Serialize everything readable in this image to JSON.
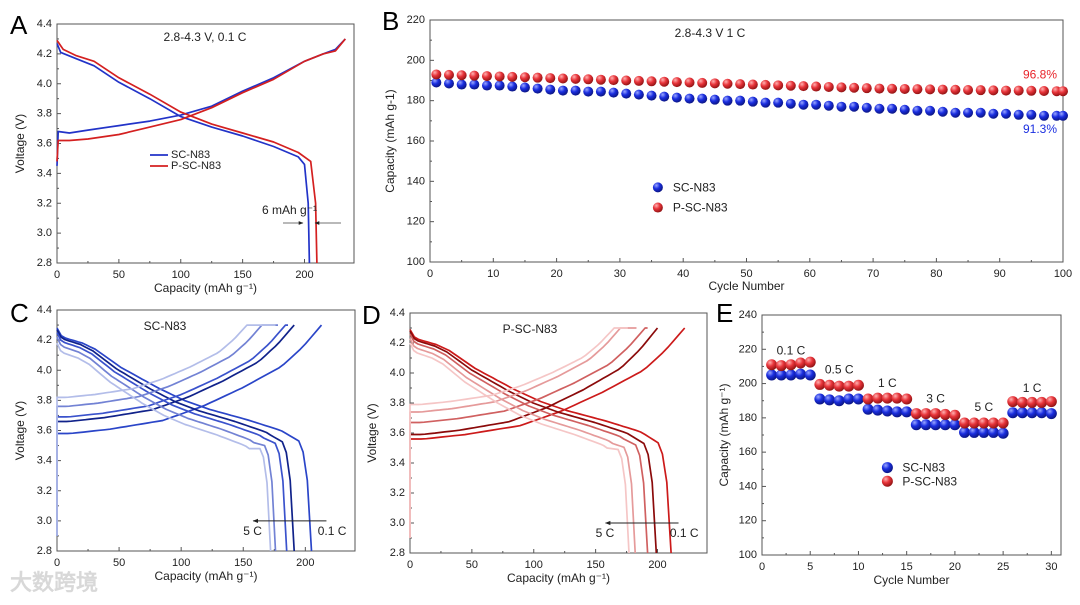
{
  "watermark": "大数跨境",
  "chart_data": [
    {
      "panel": "A",
      "type": "line",
      "title": "2.8-4.3 V, 0.1 C",
      "xlabel": "Capacity (mAh g⁻¹)",
      "ylabel": "Voltage (V)",
      "xlim": [
        0,
        240
      ],
      "ylim": [
        2.8,
        4.4
      ],
      "xticks": [
        "0",
        "50",
        "100",
        "150",
        "200"
      ],
      "yticks": [
        "2.8",
        "3.0",
        "3.2",
        "3.4",
        "3.6",
        "3.8",
        "4.0",
        "4.2",
        "4.4"
      ],
      "annotation": "6 mAh g⁻¹",
      "legend_position": "center-left",
      "series": [
        {
          "name": "SC-N83",
          "color": "#2233c8",
          "charge": [
            [
              0,
              3.45
            ],
            [
              1,
              3.68
            ],
            [
              10,
              3.67
            ],
            [
              25,
              3.69
            ],
            [
              50,
              3.72
            ],
            [
              75,
              3.75
            ],
            [
              100,
              3.79
            ],
            [
              125,
              3.85
            ],
            [
              150,
              3.95
            ],
            [
              175,
              4.04
            ],
            [
              200,
              4.15
            ],
            [
              215,
              4.2
            ],
            [
              225,
              4.23
            ],
            [
              233,
              4.3
            ]
          ],
          "discharge": [
            [
              0,
              4.27
            ],
            [
              3,
              4.21
            ],
            [
              15,
              4.17
            ],
            [
              30,
              4.12
            ],
            [
              50,
              4.01
            ],
            [
              75,
              3.9
            ],
            [
              100,
              3.78
            ],
            [
              125,
              3.71
            ],
            [
              150,
              3.65
            ],
            [
              175,
              3.58
            ],
            [
              195,
              3.51
            ],
            [
              200,
              3.46
            ],
            [
              203,
              3.2
            ],
            [
              204,
              2.8
            ]
          ]
        },
        {
          "name": "P-SC-N83",
          "color": "#d42020",
          "charge": [
            [
              0,
              3.48
            ],
            [
              1,
              3.62
            ],
            [
              10,
              3.62
            ],
            [
              25,
              3.63
            ],
            [
              50,
              3.66
            ],
            [
              75,
              3.71
            ],
            [
              100,
              3.76
            ],
            [
              125,
              3.84
            ],
            [
              150,
              3.94
            ],
            [
              175,
              4.03
            ],
            [
              200,
              4.15
            ],
            [
              215,
              4.2
            ],
            [
              225,
              4.22
            ],
            [
              233,
              4.3
            ]
          ],
          "discharge": [
            [
              0,
              4.29
            ],
            [
              5,
              4.23
            ],
            [
              15,
              4.19
            ],
            [
              30,
              4.15
            ],
            [
              50,
              4.04
            ],
            [
              75,
              3.93
            ],
            [
              100,
              3.81
            ],
            [
              125,
              3.73
            ],
            [
              150,
              3.67
            ],
            [
              175,
              3.61
            ],
            [
              195,
              3.54
            ],
            [
              205,
              3.48
            ],
            [
              209,
              3.2
            ],
            [
              210,
              2.8
            ]
          ]
        }
      ]
    },
    {
      "panel": "B",
      "type": "scatter",
      "title": "2.8-4.3 V 1 C",
      "xlabel": "Cycle Number",
      "ylabel": "Capacity (mAh g-1)",
      "xlim": [
        0,
        100
      ],
      "ylim": [
        100,
        220
      ],
      "xticks": [
        "0",
        "10",
        "20",
        "30",
        "40",
        "50",
        "60",
        "70",
        "80",
        "90",
        "100"
      ],
      "yticks": [
        "100",
        "120",
        "140",
        "160",
        "180",
        "200",
        "220"
      ],
      "legend_position": "center",
      "x": [
        1,
        3,
        5,
        7,
        9,
        11,
        13,
        15,
        17,
        19,
        21,
        23,
        25,
        27,
        29,
        31,
        33,
        35,
        37,
        39,
        41,
        43,
        45,
        47,
        49,
        51,
        53,
        55,
        57,
        59,
        61,
        63,
        65,
        67,
        69,
        71,
        73,
        75,
        77,
        79,
        81,
        83,
        85,
        87,
        89,
        91,
        93,
        95,
        97,
        99
      ],
      "series": [
        {
          "name": "SC-N83",
          "color": "#1a2ee0",
          "retention": "91.3%",
          "values": [
            189,
            188.5,
            188,
            188,
            187.5,
            187.5,
            187,
            186.5,
            186,
            185.5,
            185,
            185,
            184.5,
            184.5,
            184,
            183.5,
            183,
            182.5,
            182,
            181.5,
            181,
            181,
            180.5,
            180,
            180,
            179.5,
            179,
            179,
            178.5,
            178,
            178,
            177.5,
            177,
            177,
            176.5,
            176,
            176,
            175.5,
            175,
            175,
            174.5,
            174,
            174,
            174,
            173.5,
            173.5,
            173,
            173,
            172.5,
            172.5
          ]
        },
        {
          "name": "P-SC-N83",
          "color": "#e8242a",
          "retention": "96.8%",
          "values": [
            193,
            192.8,
            192.6,
            192.4,
            192.2,
            192,
            191.8,
            191.6,
            191.4,
            191.2,
            191,
            190.8,
            190.6,
            190.4,
            190.2,
            190,
            189.8,
            189.6,
            189.4,
            189.2,
            189,
            188.8,
            188.6,
            188.4,
            188.2,
            188,
            187.8,
            187.6,
            187.4,
            187.2,
            187,
            186.8,
            186.6,
            186.4,
            186.2,
            186,
            185.9,
            185.8,
            185.7,
            185.6,
            185.5,
            185.4,
            185.3,
            185.2,
            185.1,
            185,
            185,
            184.9,
            184.8,
            184.7
          ]
        }
      ]
    },
    {
      "panel": "C",
      "type": "line",
      "title": "SC-N83",
      "xlabel": "Capacity (mAh g⁻¹)",
      "ylabel": "Voltage (V)",
      "xlim": [
        0,
        240
      ],
      "ylim": [
        2.8,
        4.4
      ],
      "xticks": [
        "0",
        "50",
        "100",
        "150",
        "200"
      ],
      "yticks": [
        "2.8",
        "3.0",
        "3.2",
        "3.4",
        "3.6",
        "3.8",
        "4.0",
        "4.2",
        "4.4"
      ],
      "arrow_from_label": "0.1 C",
      "arrow_to_label": "5 C",
      "series": [
        {
          "rate": "0.1 C",
          "color": "#2a45c8",
          "charge_start_voltage": 3.58,
          "charge_cc_capacity": 213,
          "charge_capacity": 213,
          "discharge_start_voltage": 4.28,
          "discharge_capacity": 205
        },
        {
          "rate": "0.5 C",
          "color": "#10228a",
          "charge_start_voltage": 3.66,
          "charge_cc_capacity": 191,
          "charge_capacity": 191,
          "discharge_start_voltage": 4.27,
          "discharge_capacity": 191
        },
        {
          "rate": "1 C",
          "color": "#3a52cc",
          "charge_start_voltage": 3.69,
          "charge_cc_capacity": 184,
          "charge_capacity": 186,
          "discharge_start_voltage": 4.25,
          "discharge_capacity": 185
        },
        {
          "rate": "3 C",
          "color": "#7282d4",
          "charge_start_voltage": 3.76,
          "charge_cc_capacity": 165,
          "charge_capacity": 178,
          "discharge_start_voltage": 4.22,
          "discharge_capacity": 176
        },
        {
          "rate": "5 C",
          "color": "#b3bde9",
          "charge_start_voltage": 3.82,
          "charge_cc_capacity": 153,
          "charge_capacity": 176,
          "discharge_start_voltage": 4.18,
          "discharge_capacity": 172
        }
      ]
    },
    {
      "panel": "D",
      "type": "line",
      "title": "P-SC-N83",
      "xlabel": "Capacity (mAh g⁻¹)",
      "ylabel": "Voltage (V)",
      "xlim": [
        0,
        240
      ],
      "ylim": [
        2.8,
        4.4
      ],
      "xticks": [
        "0",
        "50",
        "100",
        "150",
        "200"
      ],
      "yticks": [
        "2.8",
        "3.0",
        "3.2",
        "3.4",
        "3.6",
        "3.8",
        "4.0",
        "4.2",
        "4.4"
      ],
      "arrow_from_label": "0.1 C",
      "arrow_to_label": "5 C",
      "series": [
        {
          "rate": "0.1 C",
          "color": "#cc1a1a",
          "charge_start_voltage": 3.56,
          "charge_cc_capacity": 222,
          "charge_capacity": 222,
          "discharge_start_voltage": 4.29,
          "discharge_capacity": 211
        },
        {
          "rate": "0.5 C",
          "color": "#8b0a0a",
          "charge_start_voltage": 3.59,
          "charge_cc_capacity": 200,
          "charge_capacity": 200,
          "discharge_start_voltage": 4.28,
          "discharge_capacity": 199
        },
        {
          "rate": "1 C",
          "color": "#d06060",
          "charge_start_voltage": 3.67,
          "charge_cc_capacity": 190,
          "charge_capacity": 192,
          "discharge_start_voltage": 4.26,
          "discharge_capacity": 192
        },
        {
          "rate": "3 C",
          "color": "#e59a9a",
          "charge_start_voltage": 3.74,
          "charge_cc_capacity": 170,
          "charge_capacity": 183,
          "discharge_start_voltage": 4.23,
          "discharge_capacity": 182
        },
        {
          "rate": "5 C",
          "color": "#f5c6c6",
          "charge_start_voltage": 3.79,
          "charge_cc_capacity": 165,
          "charge_capacity": 176,
          "discharge_start_voltage": 4.2,
          "discharge_capacity": 177
        }
      ]
    },
    {
      "panel": "E",
      "type": "scatter",
      "xlabel": "Cycle Number",
      "ylabel": "Capacity (mAh g⁻¹)",
      "xlim": [
        0,
        31
      ],
      "ylim": [
        100,
        240
      ],
      "xticks": [
        "0",
        "5",
        "10",
        "15",
        "20",
        "25",
        "30"
      ],
      "yticks": [
        "100",
        "120",
        "140",
        "160",
        "180",
        "200",
        "220",
        "240"
      ],
      "legend_position": "center",
      "x": [
        1,
        2,
        3,
        4,
        5,
        6,
        7,
        8,
        9,
        10,
        11,
        12,
        13,
        14,
        15,
        16,
        17,
        18,
        19,
        20,
        21,
        22,
        23,
        24,
        25,
        26,
        27,
        28,
        29,
        30
      ],
      "rate_labels": [
        {
          "text": "0.1 C",
          "cycle": 3,
          "capacity": 217
        },
        {
          "text": "0.5 C",
          "cycle": 8,
          "capacity": 206
        },
        {
          "text": "1 C",
          "cycle": 13,
          "capacity": 198
        },
        {
          "text": "3 C",
          "cycle": 18,
          "capacity": 189
        },
        {
          "text": "5 C",
          "cycle": 23,
          "capacity": 184
        },
        {
          "text": "1 C",
          "cycle": 28,
          "capacity": 195
        }
      ],
      "series": [
        {
          "name": "SC-N83",
          "color": "#1a2ee0",
          "values": [
            205,
            205,
            205,
            205.5,
            205,
            191,
            190.5,
            190,
            191,
            191,
            185,
            184.5,
            184,
            183.5,
            183.5,
            176,
            176,
            176,
            176,
            176,
            171.5,
            171.5,
            171.5,
            171.5,
            171,
            183,
            183,
            183,
            183,
            182.5
          ]
        },
        {
          "name": "P-SC-N83",
          "color": "#e8343a",
          "values": [
            211,
            210.5,
            211,
            212,
            212.5,
            199.5,
            199,
            198.5,
            198.5,
            199,
            191,
            191.5,
            191.5,
            191.5,
            191,
            182.5,
            182.5,
            182.5,
            182,
            181.5,
            177,
            177,
            177,
            177,
            177,
            189.5,
            189,
            189,
            189,
            189.5
          ]
        }
      ]
    }
  ],
  "panel_letters": [
    "A",
    "B",
    "C",
    "D",
    "E"
  ]
}
